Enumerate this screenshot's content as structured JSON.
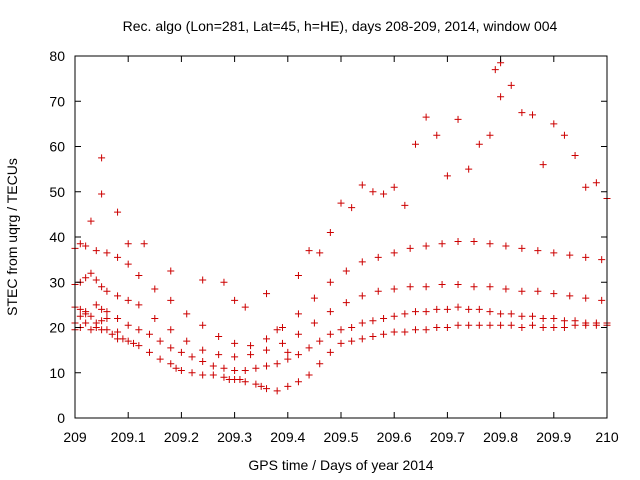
{
  "chart_data": {
    "type": "scatter",
    "title": "Rec. algo (Lon=281, Lat=45, h=HE), days 208-209, 2014, window 004",
    "xlabel": "GPS time / Days of year 2014",
    "ylabel": "STEC from uqrg / TECUs",
    "xlim": [
      209,
      210
    ],
    "ylim": [
      0,
      80
    ],
    "xticks": [
      209,
      209.1,
      209.2,
      209.3,
      209.4,
      209.5,
      209.6,
      209.7,
      209.8,
      209.9,
      210
    ],
    "xtick_labels": [
      "209",
      "209.1",
      "209.2",
      "209.3",
      "209.4",
      "209.5",
      "209.6",
      "209.7",
      "209.8",
      "209.9",
      "210"
    ],
    "yticks": [
      0,
      10,
      20,
      30,
      40,
      50,
      60,
      70,
      80
    ],
    "ytick_labels": [
      "0",
      "10",
      "20",
      "30",
      "40",
      "50",
      "60",
      "70",
      "80"
    ],
    "grid": false,
    "legend": "none",
    "marker": "plus",
    "color": "#cc0000",
    "series": [
      {
        "x": [
          209.0,
          209.0,
          209.01,
          209.01,
          209.02,
          209.02,
          209.03,
          209.04,
          209.04,
          209.05,
          209.05,
          209.06,
          209.06,
          209.07,
          209.08,
          209.08,
          209.09,
          209.1,
          209.11,
          209.12,
          209.14,
          209.16,
          209.18,
          209.19,
          209.2,
          209.22,
          209.24,
          209.26,
          209.28,
          209.29,
          209.3,
          209.31,
          209.32,
          209.34,
          209.35,
          209.36,
          209.38,
          209.4,
          209.42,
          209.44,
          209.46,
          209.48,
          209.5,
          209.52,
          209.54,
          209.56,
          209.58,
          209.6,
          209.62,
          209.64,
          209.66,
          209.68,
          209.7,
          209.72,
          209.74,
          209.76,
          209.78,
          209.8,
          209.82,
          209.84,
          209.86,
          209.88,
          209.9,
          209.92,
          209.94,
          209.96,
          209.98,
          210.0
        ],
        "y": [
          19.5,
          21.0,
          22.5,
          20.0,
          23.5,
          21.0,
          19.5,
          21.0,
          20.0,
          19.5,
          21.5,
          19.5,
          22.0,
          18.5,
          17.5,
          19.0,
          17.5,
          17.0,
          16.5,
          16.0,
          14.5,
          13.0,
          12.0,
          11.0,
          10.5,
          10.0,
          9.5,
          9.5,
          9.0,
          8.5,
          8.5,
          8.5,
          8.0,
          7.5,
          7.0,
          6.5,
          6.0,
          7.0,
          8.0,
          9.5,
          12.0,
          14.5,
          16.5,
          17.0,
          17.5,
          18.0,
          18.5,
          19.0,
          19.0,
          19.5,
          19.5,
          20.0,
          20.0,
          20.5,
          20.5,
          20.5,
          20.5,
          20.5,
          20.5,
          20.0,
          20.5,
          20.0,
          20.0,
          20.0,
          20.5,
          20.5,
          20.5,
          20.5
        ]
      },
      {
        "x": [
          209.0,
          209.01,
          209.02,
          209.03,
          209.04,
          209.05,
          209.06,
          209.08,
          209.1,
          209.12,
          209.14,
          209.16,
          209.18,
          209.2,
          209.22,
          209.24,
          209.26,
          209.28,
          209.3,
          209.32,
          209.34,
          209.36,
          209.38,
          209.4,
          209.42,
          209.44,
          209.46,
          209.48,
          209.5,
          209.52,
          209.54,
          209.56,
          209.58,
          209.6,
          209.62,
          209.64,
          209.66,
          209.68,
          209.7,
          209.72,
          209.74,
          209.76,
          209.78,
          209.8,
          209.82,
          209.84,
          209.86,
          209.88,
          209.9,
          209.92,
          209.94,
          209.96,
          209.98,
          210.0
        ],
        "y": [
          24.5,
          24.0,
          23.0,
          22.5,
          25.0,
          24.0,
          23.5,
          22.0,
          20.5,
          19.5,
          18.5,
          17.0,
          15.5,
          14.5,
          13.5,
          12.5,
          11.5,
          11.0,
          10.5,
          10.5,
          11.0,
          11.5,
          12.0,
          13.0,
          14.0,
          15.5,
          17.0,
          18.5,
          19.5,
          20.0,
          21.0,
          21.5,
          22.0,
          22.5,
          23.0,
          23.5,
          23.5,
          24.0,
          24.0,
          24.5,
          24.0,
          24.0,
          23.5,
          23.0,
          23.0,
          22.5,
          22.5,
          22.0,
          22.0,
          21.5,
          21.5,
          21.0,
          21.0,
          21.0
        ]
      },
      {
        "x": [
          209.0,
          209.01,
          209.02,
          209.03,
          209.04,
          209.05,
          209.06,
          209.08,
          209.1,
          209.12,
          209.15,
          209.18,
          209.21,
          209.24,
          209.27,
          209.3,
          209.33,
          209.36,
          209.39,
          209.42,
          209.45,
          209.48,
          209.51,
          209.54,
          209.57,
          209.6,
          209.63,
          209.66,
          209.69,
          209.72,
          209.75,
          209.78,
          209.81,
          209.84,
          209.87,
          209.9,
          209.93,
          209.96,
          209.99
        ],
        "y": [
          29.5,
          30.0,
          31.0,
          32.0,
          30.5,
          29.0,
          28.0,
          27.0,
          26.0,
          25.0,
          22.0,
          19.5,
          17.0,
          15.0,
          14.0,
          13.5,
          14.0,
          15.0,
          16.5,
          18.5,
          21.0,
          23.5,
          25.5,
          27.0,
          28.0,
          28.5,
          29.0,
          29.0,
          29.5,
          29.5,
          29.0,
          29.0,
          28.5,
          28.0,
          28.0,
          27.5,
          27.0,
          26.5,
          26.0
        ]
      },
      {
        "x": [
          209.0,
          209.01,
          209.02,
          209.04,
          209.06,
          209.08,
          209.1,
          209.12,
          209.15,
          209.18,
          209.21,
          209.24,
          209.27,
          209.3,
          209.33,
          209.36,
          209.39,
          209.42,
          209.45,
          209.48,
          209.51,
          209.54,
          209.57,
          209.6,
          209.63,
          209.66,
          209.69,
          209.72,
          209.75,
          209.78,
          209.81,
          209.84,
          209.87,
          209.9,
          209.93,
          209.96,
          209.99
        ],
        "y": [
          37.5,
          38.5,
          38.0,
          37.0,
          36.5,
          35.5,
          34.0,
          31.5,
          28.5,
          26.0,
          23.0,
          20.5,
          18.0,
          16.5,
          16.0,
          17.5,
          20.0,
          23.0,
          26.5,
          30.0,
          32.5,
          34.5,
          35.5,
          36.5,
          37.5,
          38.0,
          38.5,
          39.0,
          39.0,
          38.5,
          38.0,
          37.5,
          37.0,
          36.5,
          36.0,
          35.5,
          35.0
        ]
      },
      {
        "x": [
          209.03,
          209.05,
          209.08,
          209.1,
          209.13,
          209.18,
          209.24,
          209.28,
          209.3,
          209.32,
          209.36,
          209.38,
          209.4,
          209.42,
          209.44,
          209.46,
          209.48,
          209.5,
          209.52,
          209.54,
          209.56,
          209.58,
          209.6,
          209.62,
          209.64,
          209.66,
          209.68,
          209.7,
          209.72,
          209.74,
          209.76,
          209.78,
          209.8,
          209.82,
          209.84,
          209.86,
          209.88,
          209.9,
          209.92,
          209.94,
          209.96,
          209.98,
          210.0
        ],
        "y": [
          43.5,
          49.5,
          45.5,
          38.5,
          38.5,
          32.5,
          30.5,
          30.0,
          26.0,
          24.5,
          27.5,
          19.5,
          14.5,
          31.5,
          37.0,
          36.5,
          41.0,
          47.5,
          46.5,
          51.5,
          50.0,
          49.5,
          51.0,
          47.0,
          60.5,
          66.5,
          62.5,
          53.5,
          66.0,
          55.0,
          60.5,
          62.5,
          71.0,
          73.5,
          67.5,
          67.0,
          56.0,
          65.0,
          62.5,
          58.0,
          51.0,
          52.0,
          48.5
        ]
      },
      {
        "x": [
          209.05,
          209.79,
          209.8
        ],
        "y": [
          57.5,
          77.0,
          78.5
        ]
      }
    ]
  }
}
